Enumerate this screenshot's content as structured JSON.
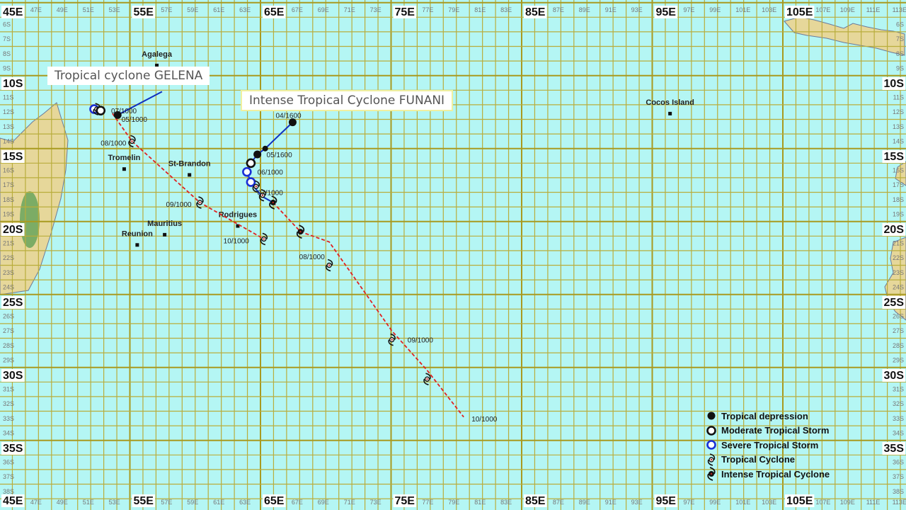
{
  "colors": {
    "ocean": "#b4f6f4",
    "grid": "#b9ad3c",
    "grid_major": "#a89a20",
    "land": "#e6d79a",
    "forecast_track": "#e02020",
    "past_track": "#1030c0",
    "severe_storm": "#1a2fd6"
  },
  "axes": {
    "lon_major": [
      "45E",
      "55E",
      "65E",
      "75E",
      "85E",
      "95E",
      "105E"
    ],
    "lon_minor": [
      "47E",
      "49E",
      "51E",
      "53E",
      "57E",
      "59E",
      "61E",
      "63E",
      "67E",
      "69E",
      "71E",
      "73E",
      "77E",
      "79E",
      "81E",
      "83E",
      "87E",
      "89E",
      "91E",
      "93E",
      "97E",
      "99E",
      "101E",
      "103E",
      "107E",
      "109E",
      "111E",
      "113E"
    ],
    "lat_labels": [
      "6S",
      "7S",
      "8S",
      "9S",
      "10S",
      "11S",
      "12S",
      "13S",
      "14S",
      "15S",
      "16S",
      "17S",
      "18S",
      "19S",
      "20S",
      "21S",
      "22S",
      "23S",
      "24S",
      "25S",
      "26S",
      "27S",
      "28S",
      "29S",
      "30S",
      "31S",
      "32S",
      "33S",
      "34S",
      "35S",
      "36S",
      "37S",
      "38S"
    ]
  },
  "titles": {
    "gelena": "Tropical cyclone GELENA",
    "funani": "Intense Tropical Cyclone FUNANI"
  },
  "places": [
    {
      "name": "Agalega",
      "lon": 56.9,
      "lat": 8.2
    },
    {
      "name": "Tromelin",
      "lon": 54.4,
      "lat": 15.3
    },
    {
      "name": "St-Brandon",
      "lon": 59.4,
      "lat": 15.7
    },
    {
      "name": "Mauritius",
      "lon": 57.5,
      "lat": 19.8
    },
    {
      "name": "Reunion",
      "lon": 55.4,
      "lat": 20.5
    },
    {
      "name": "Rodrigues",
      "lon": 63.1,
      "lat": 19.2
    },
    {
      "name": "Cocos Island",
      "lon": 96.2,
      "lat": 11.5
    }
  ],
  "storms": [
    {
      "name": "GELENA",
      "past_track": [
        [
          57.3,
          10.6
        ],
        [
          53.9,
          12.2
        ]
      ],
      "forecast_track": [
        [
          53.5,
          12.1
        ],
        [
          55.0,
          14.0
        ],
        [
          60.2,
          18.2
        ],
        [
          65.1,
          20.7
        ]
      ],
      "points": [
        {
          "lon": 52.1,
          "lat": 11.8,
          "type": "severe"
        },
        {
          "lon": 52.3,
          "lat": 11.8,
          "type": "tc"
        },
        {
          "lon": 52.6,
          "lat": 11.9,
          "type": "moderate"
        },
        {
          "lon": 53.9,
          "lat": 12.2,
          "type": "depression"
        },
        {
          "lon": 55.0,
          "lat": 14.0,
          "type": "tc"
        },
        {
          "lon": 60.2,
          "lat": 18.2,
          "type": "tc"
        },
        {
          "lon": 65.1,
          "lat": 20.7,
          "type": "tc"
        }
      ],
      "labels": [
        {
          "text": "07/1000",
          "lon": 53.4,
          "lat": 11.9
        },
        {
          "text": "05/1000",
          "lon": 54.2,
          "lat": 11.9
        },
        {
          "text": "08/1000",
          "lon": 52.6,
          "lat": 14.1
        },
        {
          "text": "09/1000",
          "lon": 57.6,
          "lat": 18.3
        },
        {
          "text": "10/1000",
          "lon": 62.0,
          "lat": 20.8
        }
      ]
    },
    {
      "name": "FUNANI",
      "past_track": [
        [
          67.3,
          12.7
        ],
        [
          65.2,
          14.5
        ],
        [
          64.6,
          14.9
        ],
        [
          64.1,
          15.5
        ],
        [
          63.8,
          16.1
        ],
        [
          64.1,
          16.8
        ],
        [
          64.5,
          17.3
        ],
        [
          65.0,
          17.8
        ],
        [
          65.8,
          18.2
        ]
      ],
      "forecast_track": [
        [
          65.8,
          18.2
        ],
        [
          67.9,
          20.2
        ],
        [
          70.1,
          20.9
        ],
        [
          74.9,
          27.0
        ],
        [
          77.6,
          29.7
        ],
        [
          80.4,
          32.9
        ]
      ],
      "points": [
        {
          "lon": 67.3,
          "lat": 12.7,
          "type": "depression"
        },
        {
          "lon": 65.2,
          "lat": 14.5,
          "type": "depression_small"
        },
        {
          "lon": 64.6,
          "lat": 14.9,
          "type": "depression"
        },
        {
          "lon": 64.1,
          "lat": 15.5,
          "type": "moderate"
        },
        {
          "lon": 63.8,
          "lat": 16.1,
          "type": "severe"
        },
        {
          "lon": 64.1,
          "lat": 16.8,
          "type": "severe"
        },
        {
          "lon": 64.5,
          "lat": 17.1,
          "type": "tc"
        },
        {
          "lon": 65.0,
          "lat": 17.7,
          "type": "tc"
        },
        {
          "lon": 65.8,
          "lat": 18.2,
          "type": "itc"
        },
        {
          "lon": 67.9,
          "lat": 20.2,
          "type": "itc"
        },
        {
          "lon": 70.1,
          "lat": 22.5,
          "type": "tc"
        },
        {
          "lon": 74.9,
          "lat": 27.6,
          "type": "tc"
        },
        {
          "lon": 77.6,
          "lat": 30.3,
          "type": "tc"
        }
      ],
      "labels": [
        {
          "text": "04/1600",
          "lon": 66.0,
          "lat": 12.2
        },
        {
          "text": "05/1600",
          "lon": 65.3,
          "lat": 14.9
        },
        {
          "text": "06/1000",
          "lon": 64.6,
          "lat": 16.1
        },
        {
          "text": "07/1000",
          "lon": 64.6,
          "lat": 17.5
        },
        {
          "text": "08/1000",
          "lon": 67.8,
          "lat": 21.9
        },
        {
          "text": "09/1000",
          "lon": 76.1,
          "lat": 27.6
        },
        {
          "text": "10/1000",
          "lon": 81.0,
          "lat": 33.0
        }
      ]
    }
  ],
  "legend": [
    {
      "type": "depression",
      "label": "Tropical depression"
    },
    {
      "type": "moderate",
      "label": "Moderate Tropical Storm"
    },
    {
      "type": "severe",
      "label": "Severe Tropical Storm"
    },
    {
      "type": "tc",
      "label": "Tropical Cyclone"
    },
    {
      "type": "itc",
      "label": "Intense Tropical Cyclone"
    }
  ]
}
